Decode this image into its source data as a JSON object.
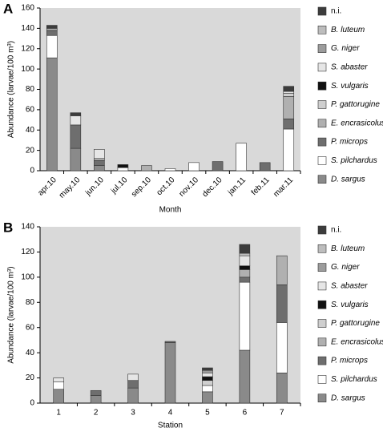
{
  "chart_data": [
    {
      "type": "bar",
      "stacked": true,
      "panel_label": "A",
      "x_label": "Month",
      "y_label": "Abundance (larvae/100 m³)",
      "categories": [
        "apr.10",
        "may.10",
        "jun.10",
        "jul.10",
        "sep.10",
        "oct.10",
        "nov.10",
        "dec.10",
        "jan.11",
        "feb.11",
        "mar.11"
      ],
      "ylim": [
        0,
        160
      ],
      "yticks": [
        0,
        20,
        40,
        60,
        80,
        100,
        120,
        140,
        160
      ],
      "series": [
        {
          "name": "D. sargus",
          "color": "#8a8a8a",
          "values": [
            111,
            22,
            5,
            0,
            0,
            0,
            0,
            0,
            0,
            0,
            0
          ]
        },
        {
          "name": "S. pilchardus",
          "color": "#ffffff",
          "values": [
            22,
            0,
            0,
            3,
            0,
            2,
            8,
            0,
            27,
            0,
            41
          ]
        },
        {
          "name": "P. microps",
          "color": "#6e6e6e",
          "values": [
            5,
            23,
            5,
            0,
            0,
            0,
            0,
            9,
            0,
            8,
            10
          ]
        },
        {
          "name": "E. encrasicolus",
          "color": "#b0b0b0",
          "values": [
            2,
            0,
            2,
            0,
            5,
            0,
            0,
            0,
            0,
            0,
            22
          ]
        },
        {
          "name": "P. gattorugine",
          "color": "#cfcfcf",
          "values": [
            0,
            0,
            0,
            0,
            0,
            0,
            0,
            0,
            0,
            0,
            3
          ]
        },
        {
          "name": "S. vulgaris",
          "color": "#111111",
          "values": [
            0,
            0,
            0,
            3,
            0,
            0,
            0,
            0,
            0,
            0,
            0
          ]
        },
        {
          "name": "S. abaster",
          "color": "#e6e6e6",
          "values": [
            0,
            9,
            9,
            0,
            0,
            0,
            0,
            0,
            0,
            0,
            2
          ]
        },
        {
          "name": "G. niger",
          "color": "#9c9c9c",
          "values": [
            0,
            0,
            0,
            0,
            0,
            0,
            0,
            0,
            0,
            0,
            0
          ]
        },
        {
          "name": "B. luteum",
          "color": "#bdbdbd",
          "values": [
            0,
            0,
            0,
            0,
            0,
            0,
            0,
            0,
            0,
            0,
            0
          ]
        },
        {
          "name": "n.i.",
          "color": "#3c3c3c",
          "values": [
            3,
            3,
            0,
            0,
            0,
            0,
            0,
            0,
            0,
            0,
            5
          ]
        }
      ]
    },
    {
      "type": "bar",
      "stacked": true,
      "panel_label": "B",
      "x_label": "Station",
      "y_label": "Abundance (larvae/100 m³)",
      "categories": [
        "1",
        "2",
        "3",
        "4",
        "5",
        "6",
        "7"
      ],
      "ylim": [
        0,
        140
      ],
      "yticks": [
        0,
        20,
        40,
        60,
        80,
        100,
        120,
        140
      ],
      "series": [
        {
          "name": "D. sargus",
          "color": "#8a8a8a",
          "values": [
            11,
            6,
            12,
            48,
            9,
            42,
            24
          ]
        },
        {
          "name": "S. pilchardus",
          "color": "#ffffff",
          "values": [
            6,
            0,
            0,
            0,
            5,
            54,
            40
          ]
        },
        {
          "name": "P. microps",
          "color": "#6e6e6e",
          "values": [
            0,
            4,
            6,
            1,
            0,
            4,
            30
          ]
        },
        {
          "name": "E. encrasicolus",
          "color": "#b0b0b0",
          "values": [
            0,
            0,
            0,
            0,
            0,
            6,
            23
          ]
        },
        {
          "name": "P. gattorugine",
          "color": "#cfcfcf",
          "values": [
            0,
            0,
            0,
            0,
            4,
            0,
            0
          ]
        },
        {
          "name": "S. vulgaris",
          "color": "#111111",
          "values": [
            0,
            0,
            0,
            0,
            3,
            3,
            0
          ]
        },
        {
          "name": "S. abaster",
          "color": "#e6e6e6",
          "values": [
            3,
            0,
            5,
            0,
            3,
            8,
            0
          ]
        },
        {
          "name": "G. niger",
          "color": "#9c9c9c",
          "values": [
            0,
            0,
            0,
            0,
            2,
            0,
            0
          ]
        },
        {
          "name": "B. luteum",
          "color": "#bdbdbd",
          "values": [
            0,
            0,
            0,
            0,
            0,
            2,
            0
          ]
        },
        {
          "name": "n.i.",
          "color": "#3c3c3c",
          "values": [
            0,
            0,
            0,
            0,
            2,
            7,
            0
          ]
        }
      ]
    }
  ]
}
